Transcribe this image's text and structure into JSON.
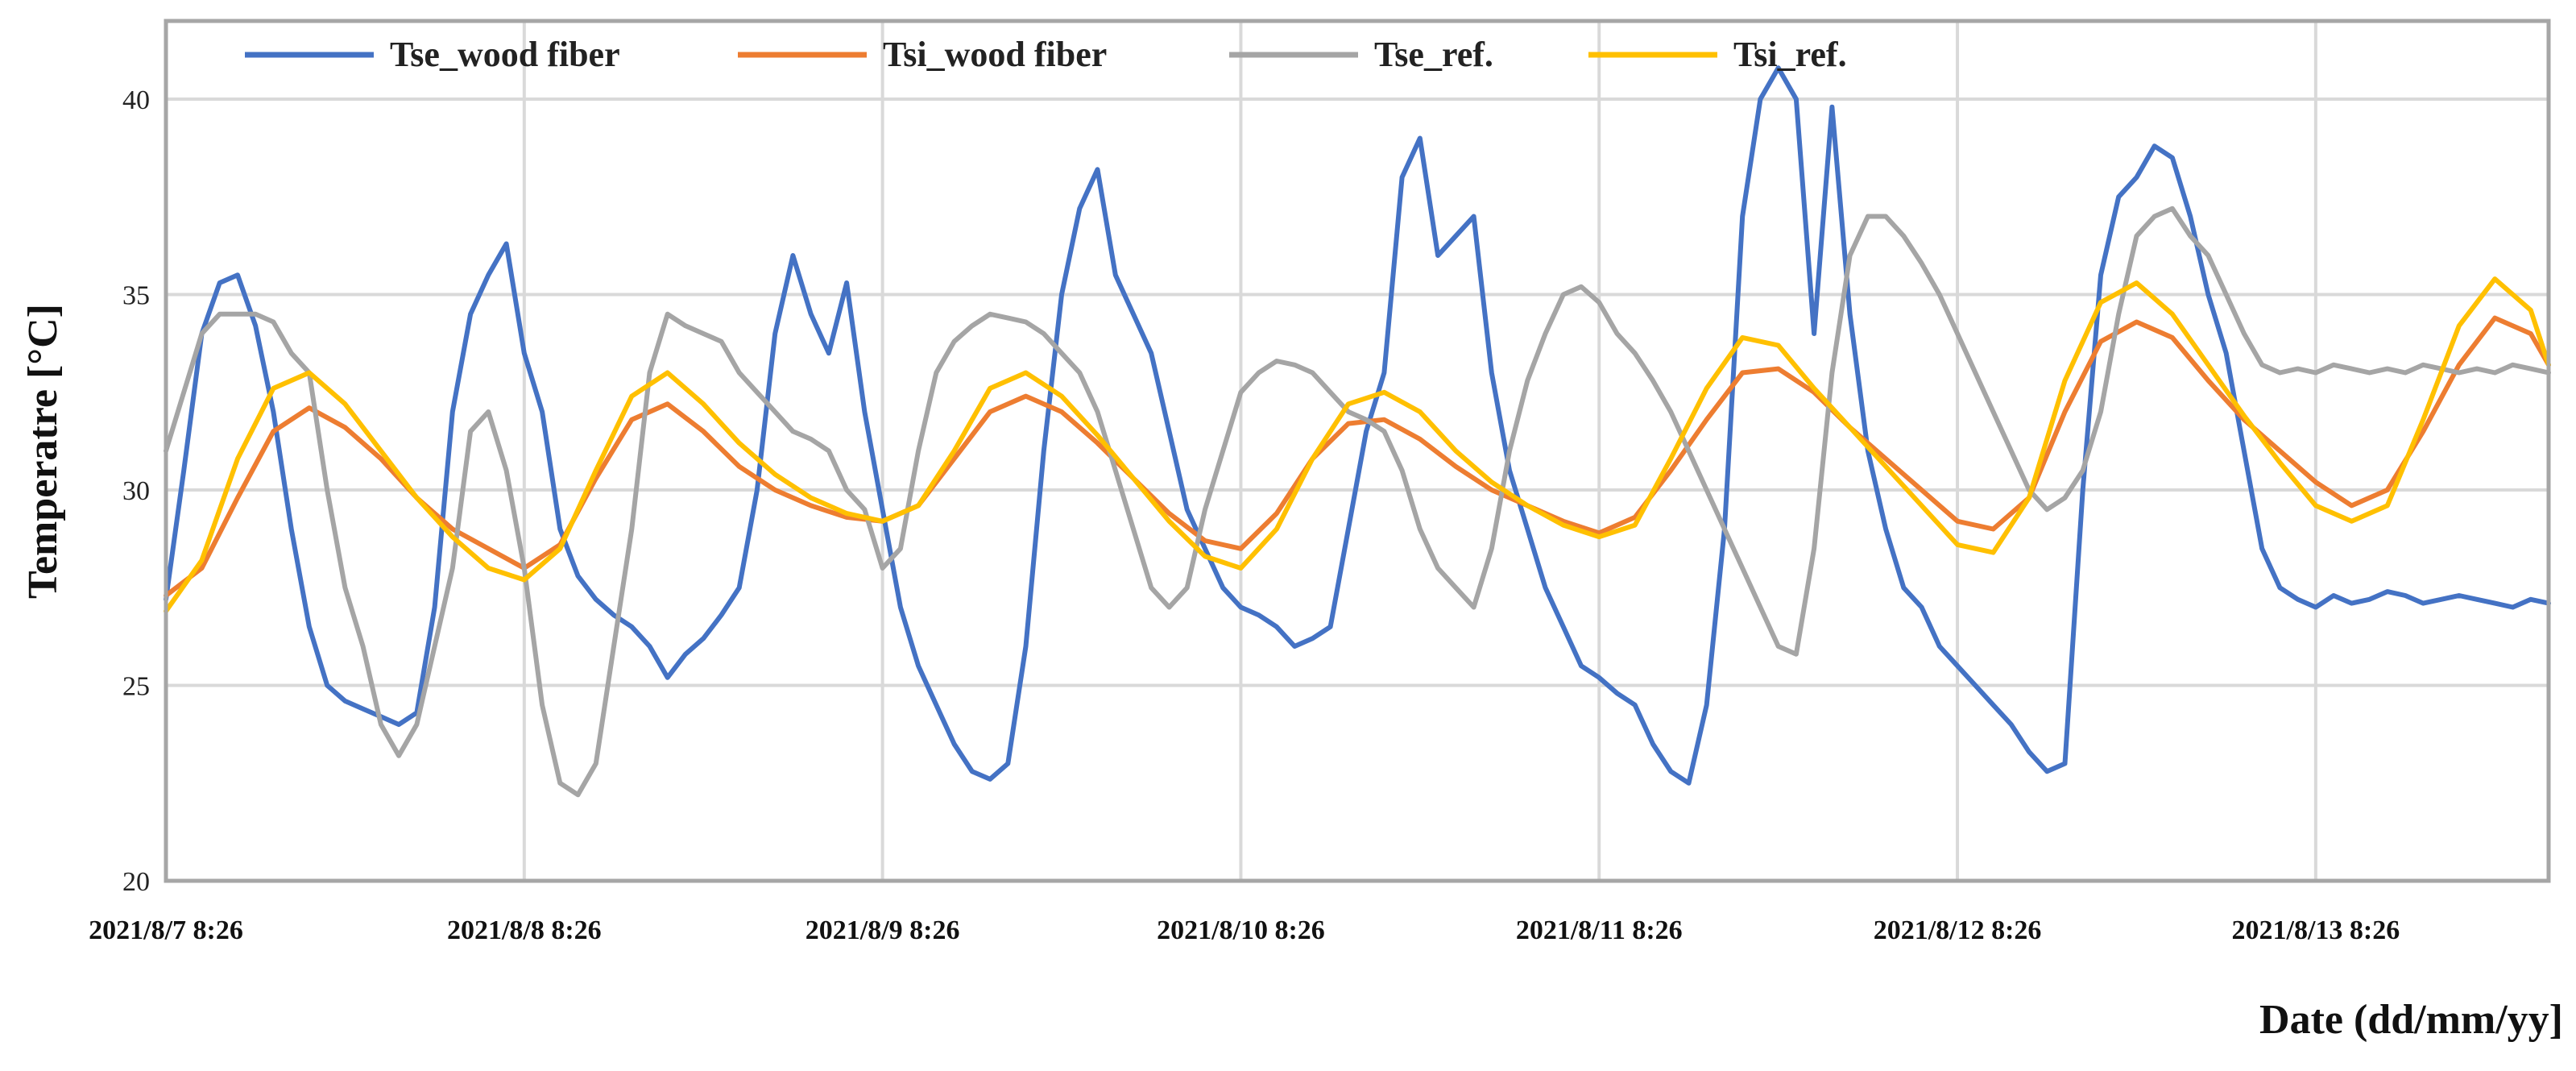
{
  "chart_data": {
    "type": "line",
    "title": "",
    "xlabel": "Date (dd/mm/yy]",
    "ylabel": "Temperatre [°C]",
    "ylim": [
      20,
      42
    ],
    "yticks": [
      20,
      25,
      30,
      35,
      40
    ],
    "xlim": [
      0,
      6.65
    ],
    "x_unit": "days since 2021/8/7 8:26",
    "xticks": [
      0,
      1,
      2,
      3,
      4,
      5,
      6
    ],
    "xtick_labels": [
      "2021/8/7 8:26",
      "2021/8/8 8:26",
      "2021/8/9 8:26",
      "2021/8/10 8:26",
      "2021/8/11 8:26",
      "2021/8/12 8:26",
      "2021/8/13 8:26"
    ],
    "grid": true,
    "legend_position": "top",
    "series": [
      {
        "name": "Tse_wood fiber",
        "color": "#4472C4",
        "x": [
          0,
          0.05,
          0.1,
          0.15,
          0.2,
          0.25,
          0.3,
          0.35,
          0.4,
          0.45,
          0.5,
          0.55,
          0.6,
          0.65,
          0.7,
          0.75,
          0.8,
          0.85,
          0.9,
          0.95,
          1.0,
          1.05,
          1.1,
          1.15,
          1.2,
          1.25,
          1.3,
          1.35,
          1.4,
          1.45,
          1.5,
          1.55,
          1.6,
          1.65,
          1.7,
          1.75,
          1.8,
          1.85,
          1.9,
          1.95,
          2.0,
          2.05,
          2.1,
          2.15,
          2.2,
          2.25,
          2.3,
          2.35,
          2.4,
          2.45,
          2.5,
          2.55,
          2.6,
          2.65,
          2.7,
          2.75,
          2.8,
          2.85,
          2.9,
          2.95,
          3.0,
          3.05,
          3.1,
          3.15,
          3.2,
          3.25,
          3.3,
          3.35,
          3.4,
          3.45,
          3.5,
          3.55,
          3.6,
          3.65,
          3.7,
          3.75,
          3.8,
          3.85,
          3.9,
          3.95,
          4.0,
          4.05,
          4.1,
          4.15,
          4.2,
          4.25,
          4.3,
          4.35,
          4.4,
          4.45,
          4.5,
          4.55,
          4.6,
          4.65,
          4.7,
          4.75,
          4.8,
          4.85,
          4.9,
          4.95,
          5.0,
          5.05,
          5.1,
          5.15,
          5.2,
          5.25,
          5.3,
          5.35,
          5.4,
          5.45,
          5.5,
          5.55,
          5.6,
          5.65,
          5.7,
          5.75,
          5.8,
          5.85,
          5.9,
          5.95,
          6.0,
          6.05,
          6.1,
          6.15,
          6.2,
          6.25,
          6.3,
          6.35,
          6.4,
          6.45,
          6.5,
          6.55,
          6.6,
          6.65
        ],
        "values": [
          27.2,
          30.5,
          34.0,
          35.3,
          35.5,
          34.2,
          32.0,
          29.0,
          26.5,
          25.0,
          24.6,
          24.4,
          24.2,
          24.0,
          24.3,
          27.0,
          32.0,
          34.5,
          35.5,
          36.3,
          33.5,
          32.0,
          29.0,
          27.8,
          27.2,
          26.8,
          26.5,
          26.0,
          25.2,
          25.8,
          26.2,
          26.8,
          27.5,
          30.0,
          34.0,
          36.0,
          34.5,
          33.5,
          35.3,
          32.0,
          29.5,
          27.0,
          25.5,
          24.5,
          23.5,
          22.8,
          22.6,
          23.0,
          26.0,
          31.0,
          35.0,
          37.2,
          38.2,
          35.5,
          34.5,
          33.5,
          31.5,
          29.5,
          28.5,
          27.5,
          27.0,
          26.8,
          26.5,
          26.0,
          26.2,
          26.5,
          29.0,
          31.5,
          33.0,
          38.0,
          39.0,
          36.0,
          36.5,
          37.0,
          33.0,
          30.5,
          29.0,
          27.5,
          26.5,
          25.5,
          25.2,
          24.8,
          24.5,
          23.5,
          22.8,
          22.5,
          24.5,
          29.0,
          37.0,
          40.0,
          40.8,
          40.0,
          34.0,
          39.8,
          34.5,
          31.0,
          29.0,
          27.5,
          27.0,
          26.0,
          25.5,
          25.0,
          24.5,
          24.0,
          23.3,
          22.8,
          23.0,
          30.0,
          35.5,
          37.5,
          38.0,
          38.8,
          38.5,
          37.0,
          35.0,
          33.5,
          31.0,
          28.5,
          27.5,
          27.2,
          27.0,
          27.3,
          27.1,
          27.2,
          27.4,
          27.3,
          27.1,
          27.2,
          27.3,
          27.2,
          27.1,
          27.0,
          27.2,
          27.1
        ]
      },
      {
        "name": "Tsi_wood fiber",
        "color": "#ED7D31",
        "x": [
          0,
          0.1,
          0.2,
          0.3,
          0.4,
          0.5,
          0.6,
          0.7,
          0.8,
          0.9,
          1.0,
          1.1,
          1.2,
          1.3,
          1.4,
          1.5,
          1.6,
          1.7,
          1.8,
          1.9,
          2.0,
          2.1,
          2.2,
          2.3,
          2.4,
          2.5,
          2.6,
          2.7,
          2.8,
          2.9,
          3.0,
          3.1,
          3.2,
          3.3,
          3.4,
          3.5,
          3.6,
          3.7,
          3.8,
          3.9,
          4.0,
          4.1,
          4.2,
          4.3,
          4.4,
          4.5,
          4.6,
          4.7,
          4.8,
          4.9,
          5.0,
          5.1,
          5.2,
          5.3,
          5.4,
          5.5,
          5.6,
          5.7,
          5.8,
          5.9,
          6.0,
          6.1,
          6.2,
          6.3,
          6.4,
          6.5,
          6.6,
          6.65
        ],
        "values": [
          27.3,
          28.0,
          29.8,
          31.5,
          32.1,
          31.6,
          30.8,
          29.8,
          29.0,
          28.5,
          28.0,
          28.6,
          30.3,
          31.8,
          32.2,
          31.5,
          30.6,
          30.0,
          29.6,
          29.3,
          29.2,
          29.6,
          30.8,
          32.0,
          32.4,
          32.0,
          31.2,
          30.3,
          29.4,
          28.7,
          28.5,
          29.4,
          30.8,
          31.7,
          31.8,
          31.3,
          30.6,
          30.0,
          29.6,
          29.2,
          28.9,
          29.3,
          30.5,
          31.8,
          33.0,
          33.1,
          32.5,
          31.6,
          30.8,
          30.0,
          29.2,
          29.0,
          29.8,
          32.0,
          33.8,
          34.3,
          33.9,
          32.8,
          31.8,
          31.0,
          30.2,
          29.6,
          30.0,
          31.5,
          33.2,
          34.4,
          34.0,
          33.2
        ]
      },
      {
        "name": "Tse_ref.",
        "color": "#A5A5A5",
        "x": [
          0,
          0.05,
          0.1,
          0.15,
          0.2,
          0.25,
          0.3,
          0.35,
          0.4,
          0.45,
          0.5,
          0.55,
          0.6,
          0.65,
          0.7,
          0.75,
          0.8,
          0.85,
          0.9,
          0.95,
          1.0,
          1.05,
          1.1,
          1.15,
          1.2,
          1.25,
          1.3,
          1.35,
          1.4,
          1.45,
          1.5,
          1.55,
          1.6,
          1.65,
          1.7,
          1.75,
          1.8,
          1.85,
          1.9,
          1.95,
          2.0,
          2.05,
          2.1,
          2.15,
          2.2,
          2.25,
          2.3,
          2.35,
          2.4,
          2.45,
          2.5,
          2.55,
          2.6,
          2.65,
          2.7,
          2.75,
          2.8,
          2.85,
          2.9,
          2.95,
          3.0,
          3.05,
          3.1,
          3.15,
          3.2,
          3.25,
          3.3,
          3.35,
          3.4,
          3.45,
          3.5,
          3.55,
          3.6,
          3.65,
          3.7,
          3.75,
          3.8,
          3.85,
          3.9,
          3.95,
          4.0,
          4.05,
          4.1,
          4.15,
          4.2,
          4.25,
          4.3,
          4.35,
          4.4,
          4.45,
          4.5,
          4.55,
          4.6,
          4.65,
          4.7,
          4.75,
          4.8,
          4.85,
          4.9,
          4.95,
          5.0,
          5.05,
          5.1,
          5.15,
          5.2,
          5.25,
          5.3,
          5.35,
          5.4,
          5.45,
          5.5,
          5.55,
          5.6,
          5.65,
          5.7,
          5.75,
          5.8,
          5.85,
          5.9,
          5.95,
          6.0,
          6.05,
          6.1,
          6.15,
          6.2,
          6.25,
          6.3,
          6.35,
          6.4,
          6.45,
          6.5,
          6.55,
          6.6,
          6.65
        ],
        "values": [
          31.0,
          32.5,
          34.0,
          34.5,
          34.5,
          34.5,
          34.3,
          33.5,
          33.0,
          30.0,
          27.5,
          26.0,
          24.0,
          23.2,
          24.0,
          26.0,
          28.0,
          31.5,
          32.0,
          30.5,
          28.0,
          24.5,
          22.5,
          22.2,
          23.0,
          26.0,
          29.0,
          33.0,
          34.5,
          34.2,
          34.0,
          33.8,
          33.0,
          32.5,
          32.0,
          31.5,
          31.3,
          31.0,
          30.0,
          29.5,
          28.0,
          28.5,
          31.0,
          33.0,
          33.8,
          34.2,
          34.5,
          34.4,
          34.3,
          34.0,
          33.5,
          33.0,
          32.0,
          30.5,
          29.0,
          27.5,
          27.0,
          27.5,
          29.5,
          31.0,
          32.5,
          33.0,
          33.3,
          33.2,
          33.0,
          32.5,
          32.0,
          31.8,
          31.5,
          30.5,
          29.0,
          28.0,
          27.5,
          27.0,
          28.5,
          31.0,
          32.8,
          34.0,
          35.0,
          35.2,
          34.8,
          34.0,
          33.5,
          32.8,
          32.0,
          31.0,
          30.0,
          29.0,
          28.0,
          27.0,
          26.0,
          25.8,
          28.5,
          33.0,
          36.0,
          37.0,
          37.0,
          36.5,
          35.8,
          35.0,
          34.0,
          33.0,
          32.0,
          31.0,
          30.0,
          29.5,
          29.8,
          30.5,
          32.0,
          34.5,
          36.5,
          37.0,
          37.2,
          36.5,
          36.0,
          35.0,
          34.0,
          33.2,
          33.0,
          33.1,
          33.0,
          33.2,
          33.1,
          33.0,
          33.1,
          33.0,
          33.2,
          33.1,
          33.0,
          33.1,
          33.0,
          33.2,
          33.1,
          33.0
        ]
      },
      {
        "name": "Tsi_ref.",
        "color": "#FFC000",
        "x": [
          0,
          0.1,
          0.2,
          0.3,
          0.4,
          0.5,
          0.6,
          0.7,
          0.8,
          0.9,
          1.0,
          1.1,
          1.2,
          1.3,
          1.4,
          1.5,
          1.6,
          1.7,
          1.8,
          1.9,
          2.0,
          2.1,
          2.2,
          2.3,
          2.4,
          2.5,
          2.6,
          2.7,
          2.8,
          2.9,
          3.0,
          3.1,
          3.2,
          3.3,
          3.4,
          3.5,
          3.6,
          3.7,
          3.8,
          3.9,
          4.0,
          4.1,
          4.2,
          4.3,
          4.4,
          4.5,
          4.6,
          4.7,
          4.8,
          4.9,
          5.0,
          5.1,
          5.2,
          5.3,
          5.4,
          5.5,
          5.6,
          5.7,
          5.8,
          5.9,
          6.0,
          6.1,
          6.2,
          6.3,
          6.4,
          6.5,
          6.6,
          6.65
        ],
        "values": [
          26.9,
          28.2,
          30.8,
          32.6,
          33.0,
          32.2,
          31.0,
          29.8,
          28.8,
          28.0,
          27.7,
          28.5,
          30.5,
          32.4,
          33.0,
          32.2,
          31.2,
          30.4,
          29.8,
          29.4,
          29.2,
          29.6,
          31.0,
          32.6,
          33.0,
          32.4,
          31.4,
          30.3,
          29.2,
          28.3,
          28.0,
          29.0,
          30.8,
          32.2,
          32.5,
          32.0,
          31.0,
          30.2,
          29.6,
          29.1,
          28.8,
          29.1,
          30.8,
          32.6,
          33.9,
          33.7,
          32.6,
          31.6,
          30.6,
          29.6,
          28.6,
          28.4,
          29.8,
          32.8,
          34.8,
          35.3,
          34.5,
          33.2,
          31.9,
          30.7,
          29.6,
          29.2,
          29.6,
          31.8,
          34.2,
          35.4,
          34.6,
          33.2
        ]
      }
    ]
  }
}
